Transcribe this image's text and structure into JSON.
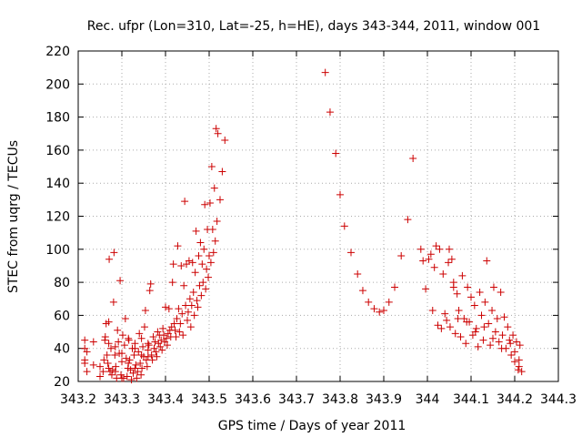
{
  "chart_data": {
    "type": "scatter",
    "title": "Rec. ufpr (Lon=310, Lat=-25, h=HE), days 343-344, 2011, window 001",
    "xlabel": "GPS time / Days of year 2011",
    "ylabel": "STEC from uqrg / TECUs",
    "xlim": [
      343.2,
      344.3
    ],
    "ylim": [
      20,
      220
    ],
    "xticks": [
      343.2,
      343.3,
      343.4,
      343.5,
      343.6,
      343.7,
      343.8,
      343.9,
      344,
      344.1,
      344.2,
      344.3
    ],
    "xtick_labels": [
      "343.2",
      "343.3",
      "343.4",
      "343.5",
      "343.6",
      "343.7",
      "343.8",
      "343.9",
      "344",
      "344.1",
      "344.2",
      "344.3"
    ],
    "yticks": [
      20,
      40,
      60,
      80,
      100,
      120,
      140,
      160,
      180,
      200,
      220
    ],
    "ytick_labels": [
      "20",
      "40",
      "60",
      "80",
      "100",
      "120",
      "140",
      "160",
      "180",
      "200",
      "220"
    ],
    "grid": true,
    "marker": "+",
    "color": "#cc0000",
    "series": [
      {
        "points": [
          [
            343.257,
            26
          ],
          [
            343.259,
            33
          ],
          [
            343.261,
            45
          ],
          [
            343.262,
            47
          ],
          [
            343.264,
            55
          ],
          [
            343.266,
            36
          ],
          [
            343.268,
            31
          ],
          [
            343.27,
            56
          ],
          [
            343.271,
            94
          ],
          [
            343.273,
            26
          ],
          [
            343.275,
            40
          ],
          [
            343.277,
            24
          ],
          [
            343.279,
            27
          ],
          [
            343.281,
            68
          ],
          [
            343.282,
            98
          ],
          [
            343.284,
            36
          ],
          [
            343.286,
            29
          ],
          [
            343.288,
            22
          ],
          [
            343.29,
            51
          ],
          [
            343.292,
            44
          ],
          [
            343.294,
            37
          ],
          [
            343.296,
            81
          ],
          [
            343.298,
            24
          ],
          [
            343.3,
            32
          ],
          [
            343.302,
            48
          ],
          [
            343.304,
            22
          ],
          [
            343.306,
            42
          ],
          [
            343.308,
            58
          ],
          [
            343.31,
            34
          ],
          [
            343.312,
            23
          ],
          [
            343.314,
            28
          ],
          [
            343.316,
            45
          ],
          [
            343.318,
            33
          ],
          [
            343.32,
            27
          ],
          [
            343.322,
            21
          ],
          [
            343.324,
            40
          ],
          [
            343.326,
            25
          ],
          [
            343.328,
            36
          ],
          [
            343.33,
            43
          ],
          [
            343.332,
            30
          ],
          [
            343.334,
            22
          ],
          [
            343.336,
            26
          ],
          [
            343.338,
            38
          ],
          [
            343.34,
            49
          ],
          [
            343.342,
            31
          ],
          [
            343.344,
            24
          ],
          [
            343.346,
            28
          ],
          [
            343.348,
            41
          ],
          [
            343.35,
            35
          ],
          [
            343.352,
            53
          ],
          [
            343.354,
            63
          ],
          [
            343.356,
            33
          ],
          [
            343.358,
            29
          ],
          [
            343.36,
            39
          ],
          [
            343.362,
            42
          ],
          [
            343.364,
            75
          ],
          [
            343.366,
            79
          ],
          [
            343.368,
            36
          ],
          [
            343.37,
            33
          ],
          [
            343.372,
            47
          ],
          [
            343.374,
            40
          ],
          [
            343.376,
            44
          ],
          [
            343.378,
            38
          ],
          [
            343.38,
            35
          ],
          [
            343.382,
            50
          ],
          [
            343.384,
            43
          ],
          [
            343.386,
            48
          ],
          [
            343.388,
            41
          ],
          [
            343.39,
            45
          ],
          [
            343.392,
            39
          ],
          [
            343.394,
            52
          ],
          [
            343.396,
            48
          ],
          [
            343.398,
            44
          ],
          [
            343.4,
            65
          ],
          [
            343.402,
            46
          ],
          [
            343.404,
            42
          ],
          [
            343.406,
            49
          ],
          [
            343.408,
            64
          ],
          [
            343.41,
            51
          ],
          [
            343.412,
            47
          ],
          [
            343.414,
            53
          ],
          [
            343.416,
            80
          ],
          [
            343.418,
            91
          ],
          [
            343.42,
            55
          ],
          [
            343.422,
            51
          ],
          [
            343.424,
            47
          ],
          [
            343.426,
            58
          ],
          [
            343.428,
            102
          ],
          [
            343.43,
            64
          ],
          [
            343.432,
            50
          ],
          [
            343.434,
            55
          ],
          [
            343.436,
            90
          ],
          [
            343.438,
            61
          ],
          [
            343.44,
            48
          ],
          [
            343.442,
            78
          ],
          [
            343.444,
            129
          ],
          [
            343.446,
            66
          ],
          [
            343.448,
            91
          ],
          [
            343.45,
            57
          ],
          [
            343.452,
            62
          ],
          [
            343.454,
            93
          ],
          [
            343.456,
            70
          ],
          [
            343.458,
            53
          ],
          [
            343.46,
            66
          ],
          [
            343.462,
            92
          ],
          [
            343.464,
            74
          ],
          [
            343.466,
            60
          ],
          [
            343.468,
            86
          ],
          [
            343.47,
            111
          ],
          [
            343.472,
            69
          ],
          [
            343.474,
            65
          ],
          [
            343.476,
            96
          ],
          [
            343.478,
            78
          ],
          [
            343.48,
            104
          ],
          [
            343.482,
            72
          ],
          [
            343.484,
            91
          ],
          [
            343.486,
            80
          ],
          [
            343.488,
            100
          ],
          [
            343.49,
            127
          ],
          [
            343.492,
            76
          ],
          [
            343.494,
            88
          ],
          [
            343.496,
            112
          ],
          [
            343.498,
            83
          ],
          [
            343.5,
            96
          ],
          [
            343.502,
            128
          ],
          [
            343.504,
            92
          ],
          [
            343.506,
            150
          ],
          [
            343.508,
            112
          ],
          [
            343.51,
            98
          ],
          [
            343.512,
            137
          ],
          [
            343.514,
            105
          ],
          [
            343.516,
            173
          ],
          [
            343.518,
            117
          ],
          [
            343.52,
            170
          ],
          [
            343.525,
            130
          ],
          [
            343.53,
            147
          ],
          [
            343.536,
            166
          ],
          [
            343.766,
            207
          ],
          [
            343.777,
            183
          ],
          [
            343.79,
            158
          ],
          [
            343.8,
            133
          ],
          [
            343.81,
            114
          ],
          [
            343.825,
            98
          ],
          [
            343.84,
            85
          ],
          [
            343.852,
            75
          ],
          [
            343.865,
            68
          ],
          [
            343.878,
            64
          ],
          [
            343.89,
            62
          ],
          [
            343.9,
            63
          ],
          [
            343.912,
            68
          ],
          [
            343.925,
            77
          ],
          [
            343.94,
            96
          ],
          [
            343.955,
            118
          ],
          [
            343.967,
            155
          ],
          [
            343.985,
            100
          ],
          [
            343.99,
            93
          ],
          [
            343.996,
            76
          ],
          [
            344.003,
            94
          ],
          [
            344.008,
            97
          ],
          [
            344.012,
            63
          ],
          [
            344.016,
            89
          ],
          [
            344.02,
            102
          ],
          [
            344.024,
            54
          ],
          [
            344.028,
            100
          ],
          [
            344.032,
            52
          ],
          [
            344.036,
            85
          ],
          [
            344.04,
            61
          ],
          [
            344.044,
            57
          ],
          [
            344.048,
            92
          ],
          [
            344.052,
            53
          ],
          [
            344.056,
            94
          ],
          [
            344.06,
            80
          ],
          [
            344.064,
            49
          ],
          [
            344.068,
            73
          ],
          [
            344.072,
            63
          ],
          [
            344.076,
            47
          ],
          [
            344.08,
            84
          ],
          [
            344.084,
            58
          ],
          [
            344.088,
            43
          ],
          [
            344.092,
            77
          ],
          [
            344.096,
            56
          ],
          [
            344.1,
            71
          ],
          [
            344.104,
            48
          ],
          [
            344.108,
            66
          ],
          [
            344.112,
            52
          ],
          [
            344.116,
            41
          ],
          [
            344.12,
            74
          ],
          [
            344.124,
            60
          ],
          [
            344.128,
            45
          ],
          [
            344.132,
            68
          ],
          [
            344.136,
            93
          ],
          [
            344.14,
            55
          ],
          [
            344.144,
            42
          ],
          [
            344.148,
            63
          ],
          [
            344.152,
            77
          ],
          [
            344.156,
            50
          ],
          [
            344.16,
            58
          ],
          [
            344.164,
            44
          ],
          [
            344.168,
            74
          ],
          [
            344.172,
            48
          ],
          [
            344.176,
            59
          ],
          [
            344.18,
            40
          ],
          [
            344.184,
            53
          ],
          [
            344.188,
            45
          ],
          [
            344.192,
            36
          ],
          [
            344.196,
            48
          ],
          [
            344.2,
            32
          ],
          [
            344.204,
            44
          ],
          [
            344.208,
            27
          ],
          [
            344.212,
            42
          ],
          [
            344.216,
            26
          ],
          [
            343.215,
            45
          ],
          [
            343.215,
            40
          ],
          [
            343.215,
            33
          ],
          [
            343.215,
            31
          ],
          [
            343.22,
            26
          ],
          [
            343.22,
            38
          ],
          [
            343.235,
            44
          ],
          [
            343.235,
            30
          ],
          [
            343.25,
            29
          ],
          [
            343.25,
            23
          ],
          [
            343.27,
            43
          ],
          [
            343.27,
            28
          ],
          [
            343.285,
            41
          ],
          [
            343.285,
            26
          ],
          [
            343.3,
            37
          ],
          [
            343.3,
            22
          ],
          [
            343.315,
            46
          ],
          [
            343.315,
            31
          ],
          [
            343.33,
            40
          ],
          [
            343.33,
            28
          ],
          [
            343.345,
            46
          ],
          [
            343.345,
            36
          ],
          [
            343.36,
            43
          ],
          [
            343.36,
            35
          ],
          [
            344.05,
            100
          ],
          [
            344.06,
            77
          ],
          [
            344.07,
            58
          ],
          [
            344.09,
            56
          ],
          [
            344.11,
            50
          ],
          [
            344.13,
            53
          ],
          [
            344.15,
            46
          ],
          [
            344.17,
            40
          ],
          [
            344.19,
            43
          ],
          [
            344.2,
            38
          ],
          [
            344.21,
            33
          ],
          [
            344.21,
            29
          ]
        ]
      }
    ]
  }
}
